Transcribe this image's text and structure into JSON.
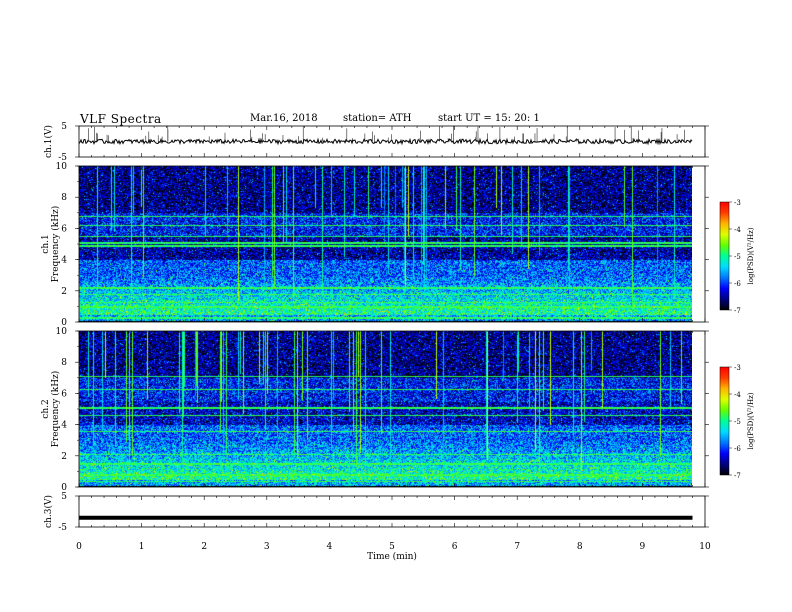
{
  "header": {
    "title": "VLF  Spectra",
    "date": "Mar.16, 2018",
    "station": "station= ATH",
    "start": "start  UT  =    15: 20: 1"
  },
  "colors": {
    "line": "#000000",
    "colormap": [
      "#000000",
      "#000080",
      "#0000ff",
      "#0078ff",
      "#00dcff",
      "#00ff96",
      "#64ff00",
      "#dcff00",
      "#ffb400",
      "#ff3c00",
      "#ff0000",
      "#ffffff"
    ]
  },
  "chart_data": [
    {
      "type": "line",
      "panel": "ch1-waveform",
      "ylabel": "ch.1(V)",
      "ylim": [
        -5,
        5
      ],
      "yticks": [
        "5",
        "-5"
      ],
      "x": [
        0,
        1,
        2,
        3,
        4,
        5,
        6,
        7,
        8,
        9,
        9.8
      ],
      "values": [
        0,
        0,
        0,
        0,
        0,
        0,
        0,
        0,
        0,
        0,
        0
      ],
      "note_values": "baseline near 0 V with small noise and spikes"
    },
    {
      "type": "heatmap",
      "panel": "ch1-spectrogram",
      "ylabel": "Frequency (kHz)",
      "chlabel": "ch.1",
      "ylim": [
        0,
        10
      ],
      "yticks": [
        "0",
        "2",
        "4",
        "6",
        "8",
        "10"
      ],
      "colorbar": {
        "label": "log(PSD)(V²/Hz)",
        "range": [
          -7,
          -3
        ],
        "ticks": [
          "-3",
          "-4",
          "-5",
          "-6",
          "-7"
        ]
      }
    },
    {
      "type": "heatmap",
      "panel": "ch2-spectrogram",
      "ylabel": "Frequency (kHz)",
      "chlabel": "ch.2",
      "ylim": [
        0,
        10
      ],
      "yticks": [
        "0",
        "2",
        "4",
        "6",
        "8",
        "10"
      ],
      "colorbar": {
        "label": "log(PSD)(V²/Hz)",
        "range": [
          -7,
          -3
        ],
        "ticks": [
          "-3",
          "-4",
          "-5",
          "-6",
          "-7"
        ]
      }
    },
    {
      "type": "line",
      "panel": "ch3-waveform",
      "ylabel": "ch.3(V)",
      "ylim": [
        -5,
        5
      ],
      "yticks": [
        "5",
        "-5"
      ],
      "x": [
        0,
        9.8
      ],
      "values": [
        -2,
        -2
      ]
    }
  ],
  "xaxis": {
    "label": "Time  (min)",
    "range": [
      0,
      10
    ],
    "ticks": [
      "0",
      "1",
      "2",
      "3",
      "4",
      "5",
      "6",
      "7",
      "8",
      "9",
      "10"
    ]
  }
}
